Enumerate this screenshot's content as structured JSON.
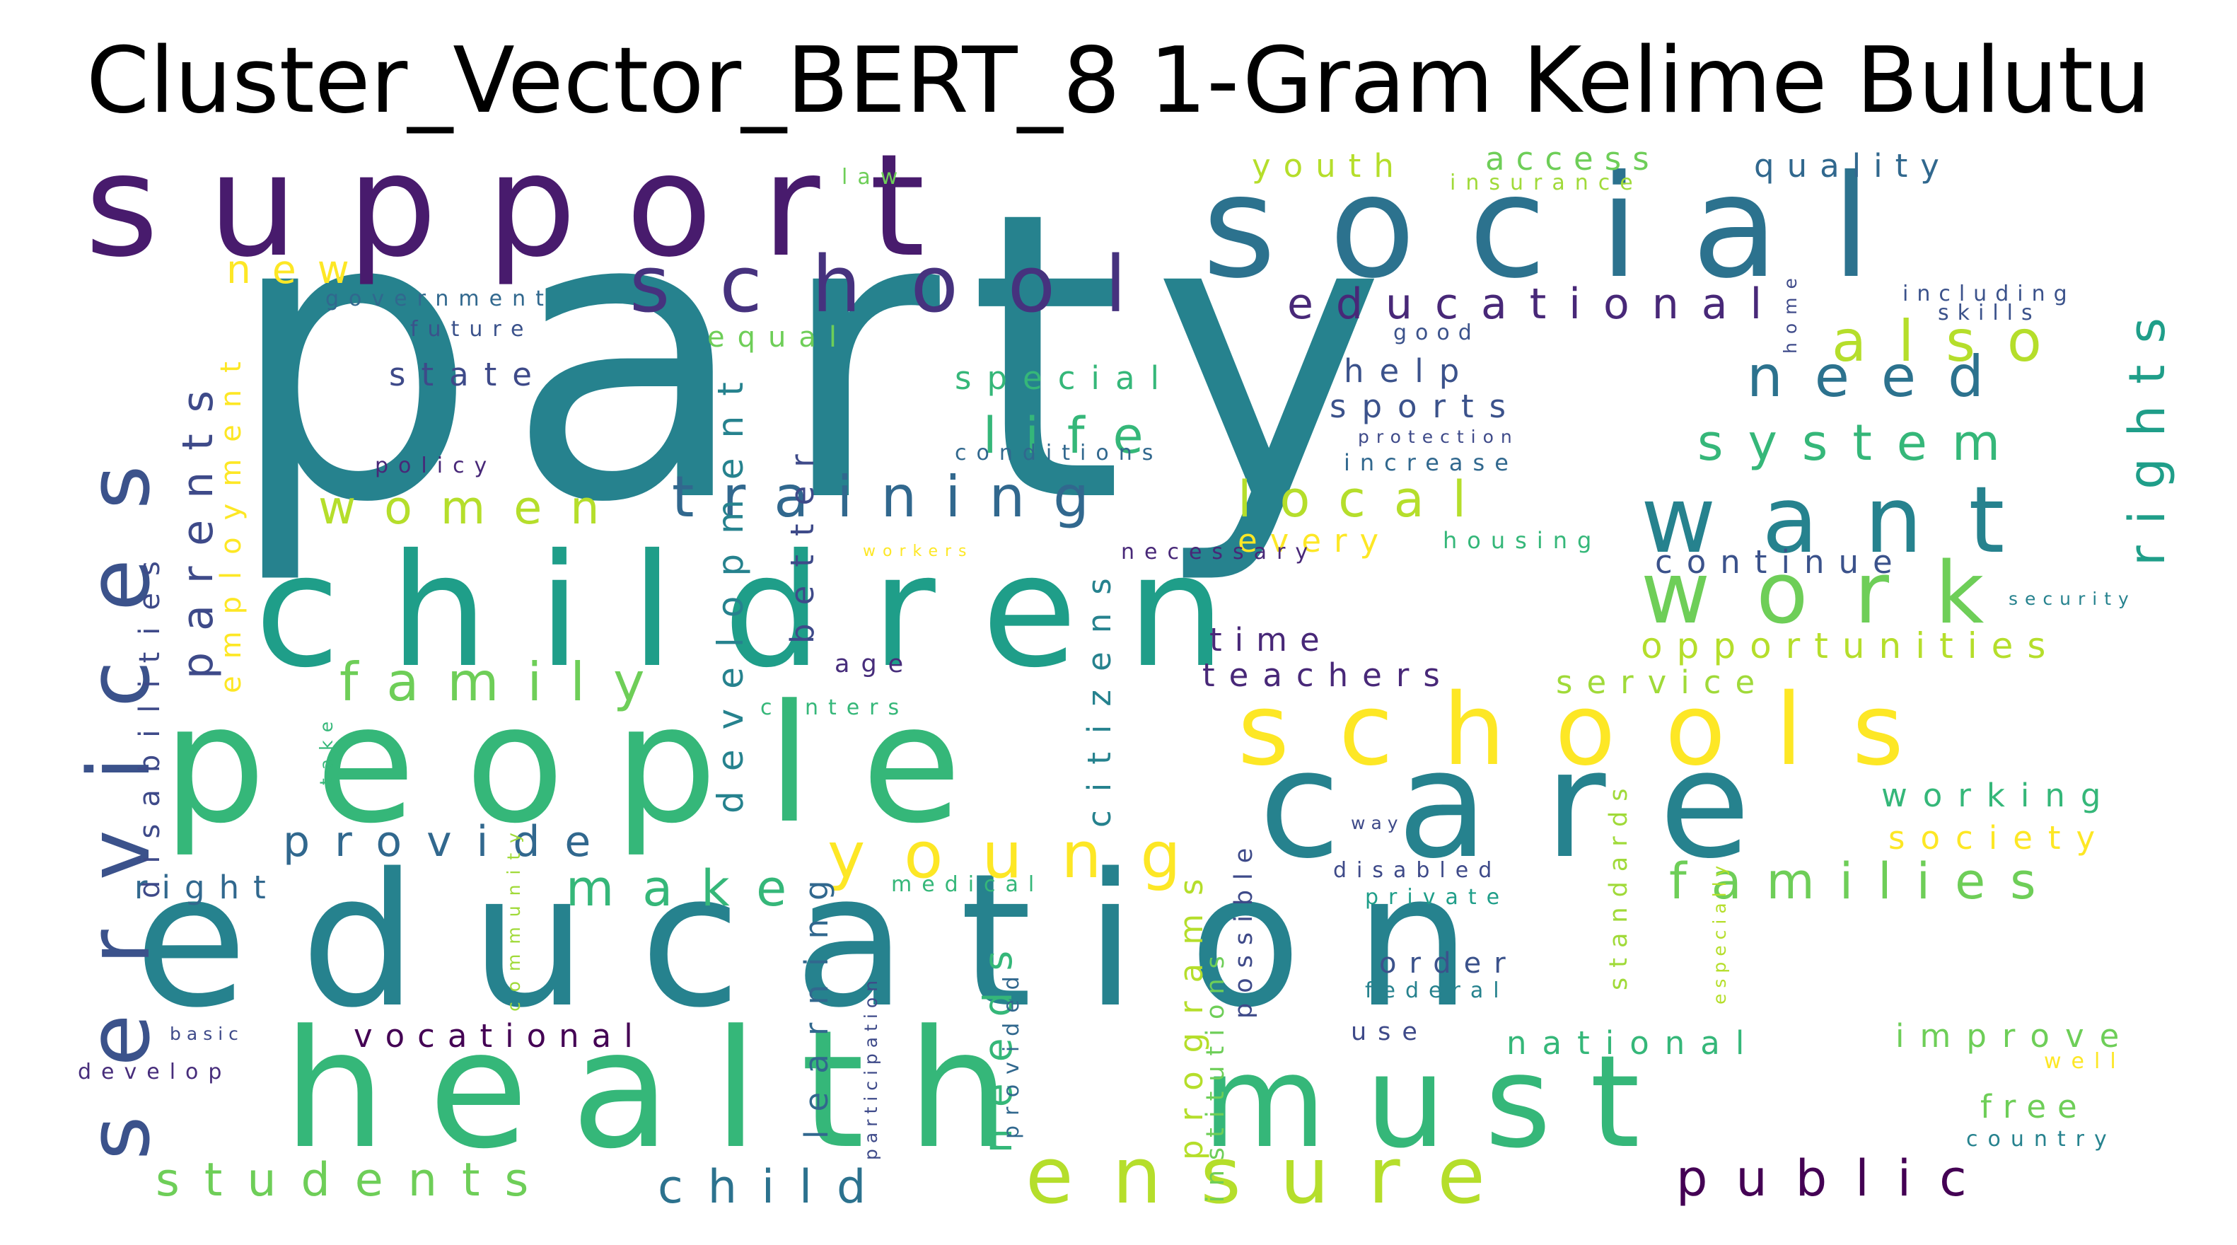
{
  "title": "Cluster_Vector_BERT_8 1-Gram Kelime Bulutu",
  "words": [
    {
      "text": "party",
      "color": "#26828e"
    },
    {
      "text": "support",
      "color": "#481b6d"
    },
    {
      "text": "social",
      "color": "#2c728e"
    },
    {
      "text": "children",
      "color": "#1f9e89"
    },
    {
      "text": "people",
      "color": "#35b779"
    },
    {
      "text": "education",
      "color": "#26828e"
    },
    {
      "text": "health",
      "color": "#35b779"
    },
    {
      "text": "care",
      "color": "#26828e"
    },
    {
      "text": "schools",
      "color": "#fde725"
    },
    {
      "text": "must",
      "color": "#35b779"
    },
    {
      "text": "want",
      "color": "#26828e"
    },
    {
      "text": "school",
      "color": "#46327e"
    },
    {
      "text": "services",
      "color": "#3b528b"
    },
    {
      "text": "work",
      "color": "#6ece58"
    },
    {
      "text": "ensure",
      "color": "#b5de2b"
    },
    {
      "text": "young",
      "color": "#fde725"
    },
    {
      "text": "families",
      "color": "#6ece58"
    },
    {
      "text": "training",
      "color": "#31688e"
    },
    {
      "text": "life",
      "color": "#35b779"
    },
    {
      "text": "family",
      "color": "#6ece58"
    },
    {
      "text": "system",
      "color": "#35b779"
    },
    {
      "text": "rights",
      "color": "#1f9e89"
    },
    {
      "text": "need",
      "color": "#2c728e"
    },
    {
      "text": "also",
      "color": "#b5de2b"
    },
    {
      "text": "educational",
      "color": "#482878"
    },
    {
      "text": "local",
      "color": "#b5de2b"
    },
    {
      "text": "public",
      "color": "#440154"
    },
    {
      "text": "make",
      "color": "#35b779"
    },
    {
      "text": "provide",
      "color": "#31688e"
    },
    {
      "text": "parents",
      "color": "#3e4a89"
    },
    {
      "text": "students",
      "color": "#6ece58"
    },
    {
      "text": "child",
      "color": "#2c728e"
    },
    {
      "text": "women",
      "color": "#b5de2b"
    },
    {
      "text": "development",
      "color": "#26828e"
    },
    {
      "text": "citizens",
      "color": "#26828e"
    },
    {
      "text": "learning",
      "color": "#31688e"
    },
    {
      "text": "needs",
      "color": "#35b779"
    },
    {
      "text": "programs",
      "color": "#b5de2b"
    },
    {
      "text": "employment",
      "color": "#fde725"
    },
    {
      "text": "disabilities",
      "color": "#3e4a89"
    },
    {
      "text": "national",
      "color": "#35b779"
    },
    {
      "text": "improve",
      "color": "#6ece58"
    },
    {
      "text": "working",
      "color": "#35b779"
    },
    {
      "text": "society",
      "color": "#fde725"
    },
    {
      "text": "opportunities",
      "color": "#b5de2b"
    },
    {
      "text": "continue",
      "color": "#3b528b"
    },
    {
      "text": "teachers",
      "color": "#482878"
    },
    {
      "text": "service",
      "color": "#a0da39"
    },
    {
      "text": "vocational",
      "color": "#440154"
    },
    {
      "text": "right",
      "color": "#31688e"
    },
    {
      "text": "new",
      "color": "#fde725"
    },
    {
      "text": "better",
      "color": "#3e4a89"
    },
    {
      "text": "special",
      "color": "#35b779"
    },
    {
      "text": "state",
      "color": "#3e4a89"
    },
    {
      "text": "sports",
      "color": "#3b528b"
    },
    {
      "text": "help",
      "color": "#3b528b"
    },
    {
      "text": "equal",
      "color": "#6ece58"
    },
    {
      "text": "youth",
      "color": "#b5de2b"
    },
    {
      "text": "access",
      "color": "#6ece58"
    },
    {
      "text": "quality",
      "color": "#31688e"
    },
    {
      "text": "every",
      "color": "#fde725"
    },
    {
      "text": "time",
      "color": "#482878"
    },
    {
      "text": "age",
      "color": "#472d7b"
    },
    {
      "text": "free",
      "color": "#6ece58"
    },
    {
      "text": "order",
      "color": "#3b528b"
    },
    {
      "text": "use",
      "color": "#3e4a89"
    },
    {
      "text": "institutions",
      "color": "#6ece58"
    },
    {
      "text": "possible",
      "color": "#3e4a89"
    },
    {
      "text": "standards",
      "color": "#a0da39"
    },
    {
      "text": "housing",
      "color": "#35b779"
    },
    {
      "text": "future",
      "color": "#3b528b"
    },
    {
      "text": "government",
      "color": "#31688e"
    },
    {
      "text": "policy",
      "color": "#482878"
    },
    {
      "text": "develop",
      "color": "#472d7b"
    },
    {
      "text": "basic",
      "color": "#3e4a89"
    },
    {
      "text": "community",
      "color": "#a0da39"
    },
    {
      "text": "take",
      "color": "#35b779"
    },
    {
      "text": "centers",
      "color": "#35b779"
    },
    {
      "text": "necessary",
      "color": "#482878"
    },
    {
      "text": "increase",
      "color": "#31688e"
    },
    {
      "text": "protection",
      "color": "#3e4a89"
    },
    {
      "text": "conditions",
      "color": "#31688e"
    },
    {
      "text": "disabled",
      "color": "#3e4a89"
    },
    {
      "text": "private",
      "color": "#1f9e89"
    },
    {
      "text": "federal",
      "color": "#26828e"
    },
    {
      "text": "medical",
      "color": "#35b779"
    },
    {
      "text": "provided",
      "color": "#31688e"
    },
    {
      "text": "participation",
      "color": "#3e4a89"
    },
    {
      "text": "especially",
      "color": "#b5de2b"
    },
    {
      "text": "well",
      "color": "#fde725"
    },
    {
      "text": "country",
      "color": "#26828e"
    },
    {
      "text": "security",
      "color": "#26828e"
    },
    {
      "text": "including",
      "color": "#3b528b"
    },
    {
      "text": "skills",
      "color": "#3b528b"
    },
    {
      "text": "home",
      "color": "#3e4a89"
    },
    {
      "text": "good",
      "color": "#3b528b"
    },
    {
      "text": "insurance",
      "color": "#a0da39"
    },
    {
      "text": "law",
      "color": "#6ece58"
    },
    {
      "text": "workers",
      "color": "#fde725"
    },
    {
      "text": "way",
      "color": "#3e4a89"
    }
  ]
}
